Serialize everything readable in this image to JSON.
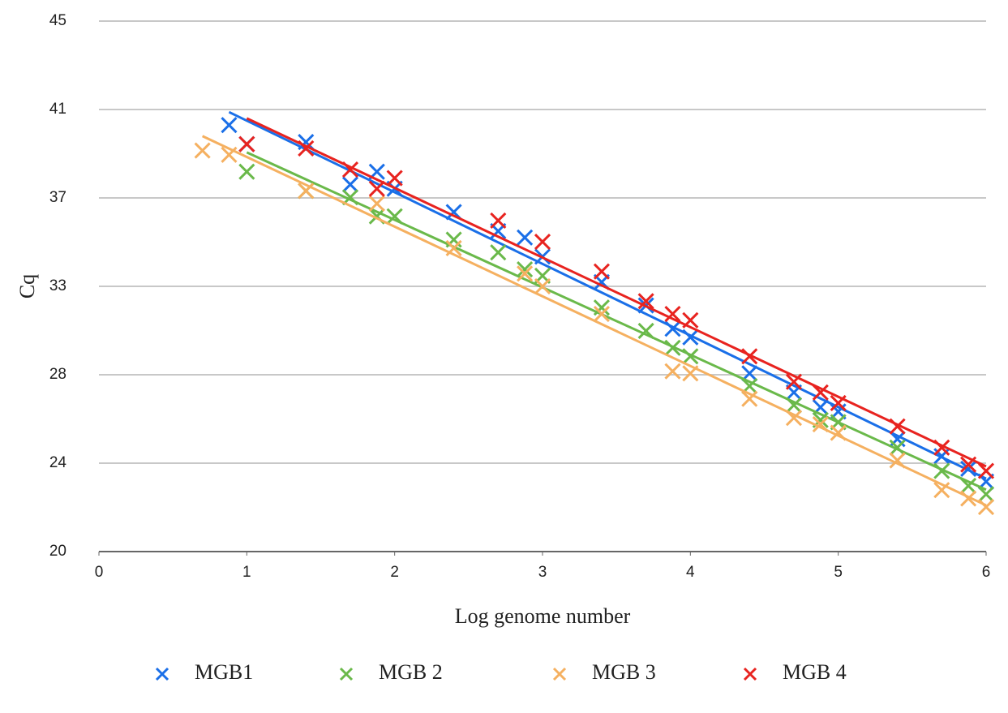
{
  "chart_data": {
    "type": "scatter",
    "xlabel": "Log genome number",
    "ylabel": "Cq",
    "xlim": [
      0,
      6
    ],
    "xticks": [
      0,
      1,
      2,
      3,
      4,
      5,
      6
    ],
    "ylim": [
      20,
      45
    ],
    "yticks": [
      20,
      {
        "value": 24.1667,
        "label": "24"
      },
      {
        "value": 28.3333,
        "label": "28"
      },
      {
        "value": 32.5,
        "label": "33"
      },
      {
        "value": 36.6667,
        "label": "37"
      },
      {
        "value": 40.8333,
        "label": "41"
      },
      45
    ],
    "grid": true,
    "trendline": true,
    "legend": "bottom",
    "series": [
      {
        "name": "MGB1",
        "color": "#1a6fe8",
        "x": [
          0.88,
          1.0,
          1.4,
          1.7,
          1.88,
          2.0,
          2.4,
          2.7,
          2.88,
          3.0,
          3.4,
          3.7,
          3.88,
          4.0,
          4.4,
          4.7,
          4.88,
          5.0,
          5.4,
          5.7,
          5.88,
          6.0
        ],
        "values": [
          40.1,
          39.2,
          39.3,
          37.3,
          37.9,
          37.1,
          36.0,
          35.1,
          34.8,
          33.9,
          32.7,
          31.6,
          30.5,
          30.1,
          28.4,
          27.5,
          26.8,
          26.6,
          25.3,
          24.5,
          23.9,
          23.3
        ]
      },
      {
        "name": "MGB 2",
        "color": "#6ab94a",
        "x": [
          1.0,
          1.4,
          1.7,
          1.88,
          2.0,
          2.4,
          2.7,
          2.88,
          3.0,
          3.4,
          3.7,
          3.88,
          4.0,
          4.4,
          4.7,
          4.88,
          5.0,
          5.4,
          5.7,
          5.88,
          6.0
        ],
        "values": [
          37.9,
          37.0,
          36.7,
          35.8,
          35.8,
          34.7,
          34.1,
          33.3,
          33.0,
          31.5,
          30.4,
          29.6,
          29.2,
          27.8,
          26.9,
          26.2,
          26.1,
          24.9,
          23.8,
          23.1,
          22.7
        ]
      },
      {
        "name": "MGB 3",
        "color": "#f5b060",
        "x": [
          0.7,
          0.88,
          1.4,
          1.88,
          2.4,
          2.88,
          3.0,
          3.4,
          3.88,
          4.0,
          4.4,
          4.7,
          4.88,
          5.0,
          5.4,
          5.7,
          5.88,
          6.0
        ],
        "values": [
          38.9,
          38.7,
          37.0,
          36.4,
          34.3,
          33.1,
          32.5,
          31.2,
          28.5,
          28.4,
          27.2,
          26.3,
          26.0,
          25.6,
          24.3,
          22.9,
          22.5,
          22.1
        ]
      },
      {
        "name": "MGB 4",
        "color": "#e8231f",
        "x": [
          1.0,
          1.4,
          1.7,
          1.88,
          2.0,
          2.7,
          3.0,
          3.4,
          3.7,
          3.88,
          4.0,
          4.4,
          4.7,
          4.88,
          5.0,
          5.4,
          5.7,
          5.88,
          6.0
        ],
        "values": [
          39.2,
          39.0,
          38.0,
          37.1,
          37.6,
          35.6,
          34.6,
          33.2,
          31.8,
          31.2,
          30.9,
          29.2,
          28.0,
          27.5,
          27.0,
          25.9,
          24.9,
          24.1,
          23.8
        ]
      }
    ]
  }
}
